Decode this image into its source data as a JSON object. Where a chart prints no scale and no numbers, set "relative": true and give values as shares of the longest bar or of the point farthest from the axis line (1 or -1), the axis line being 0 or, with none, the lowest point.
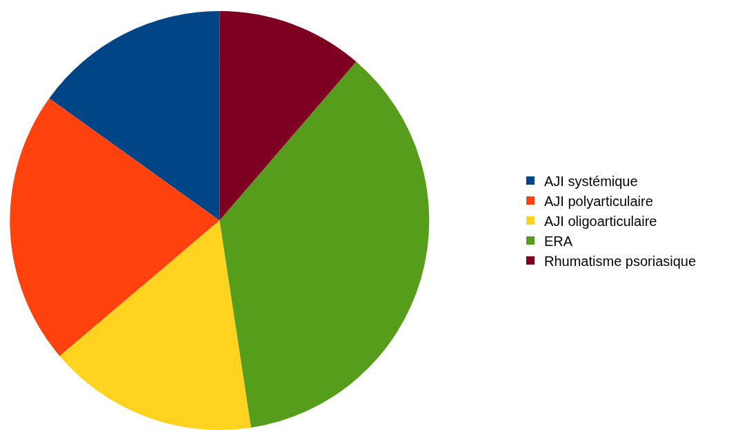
{
  "chart_data": {
    "type": "pie",
    "relative": true,
    "categories": [
      "AJI systémique",
      "AJI polyarticulaire",
      "AJI oligoarticulaire",
      "ERA",
      "Rhumatisme psoriasique"
    ],
    "values": [
      15.1,
      21.1,
      16.2,
      36.3,
      11.3
    ],
    "colors": [
      "#004586",
      "#ff420e",
      "#ffd320",
      "#579d1c",
      "#7e0021"
    ],
    "legend": "right"
  }
}
